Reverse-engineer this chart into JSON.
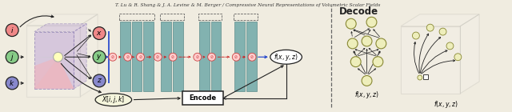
{
  "title": "T. Lu & R. Shang & J. A. Levine & M. Berger / Compressive Neural Representations of Volumetric Scalar Fields",
  "bg_color": "#f0ece0",
  "teal_color": "#6fa8a8",
  "teal_edge": "#4a8080",
  "black": "#222222",
  "red": "#cc2222",
  "blue": "#2244cc",
  "gray": "#888888",
  "node_i_color": "#f08888",
  "node_j_color": "#88cc88",
  "node_k_color": "#8888cc",
  "node_x_color": "#f08888",
  "node_y_color": "#88cc88",
  "node_z_color": "#8888cc",
  "center_color": "#ffffbb",
  "fxyz_color": "#ffffff",
  "xijk_color": "#f5f5dc",
  "mlp_node_color": "#ffcccc",
  "mlp_node_edge": "#cc4444",
  "decode_node_color": "#eeeebb",
  "decode_node_edge": "#888833",
  "purple_fill": "#c0a8d8",
  "purple_edge": "#7766aa",
  "pink_fill": "#ffaaaa",
  "green_fill": "#aaddaa",
  "cube_edge": "#555555",
  "sep_color": "#666666"
}
